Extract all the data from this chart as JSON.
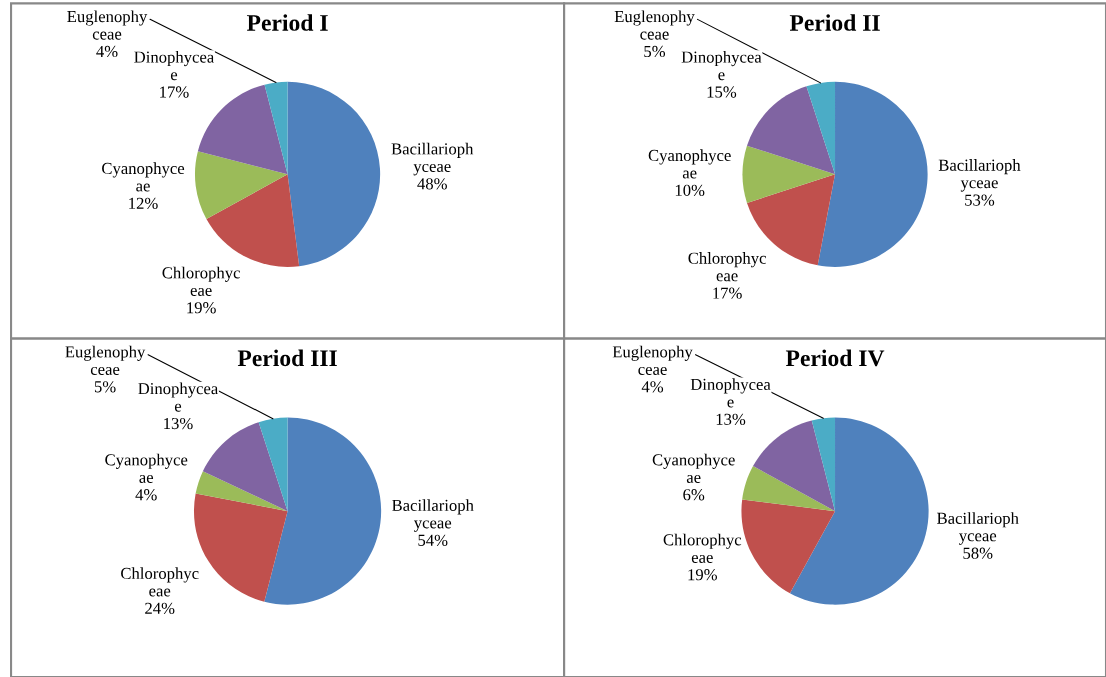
{
  "chart_data": [
    {
      "type": "pie",
      "title": "Period I",
      "categories": [
        "Bacillarioph\nyceae",
        "Chlorophyc\neae",
        "Cyanophyce\nae",
        "Dinophycea\ne",
        "Euglenophy\nceae"
      ],
      "values": [
        48,
        19,
        12,
        17,
        4
      ],
      "value_labels": [
        "48%",
        "19%",
        "12%",
        "17%",
        "4%"
      ],
      "colors": [
        "#4f81bd",
        "#c0504d",
        "#9bbb59",
        "#8064a2",
        "#4bacc6"
      ]
    },
    {
      "type": "pie",
      "title": "Period II",
      "categories": [
        "Bacillarioph\nyceae",
        "Chlorophyc\neae",
        "Cyanophyce\nae",
        "Dinophycea\ne",
        "Euglenophy\nceae"
      ],
      "values": [
        53,
        17,
        10,
        15,
        5
      ],
      "value_labels": [
        "53%",
        "17%",
        "10%",
        "15%",
        "5%"
      ],
      "colors": [
        "#4f81bd",
        "#c0504d",
        "#9bbb59",
        "#8064a2",
        "#4bacc6"
      ]
    },
    {
      "type": "pie",
      "title": "Period III",
      "categories": [
        "Bacillarioph\nyceae",
        "Chlorophyc\neae",
        "Cyanophyce\nae",
        "Dinophycea\ne",
        "Euglenophy\nceae"
      ],
      "values": [
        54,
        24,
        4,
        13,
        5
      ],
      "value_labels": [
        "54%",
        "24%",
        "4%",
        "13%",
        "5%"
      ],
      "colors": [
        "#4f81bd",
        "#c0504d",
        "#9bbb59",
        "#8064a2",
        "#4bacc6"
      ]
    },
    {
      "type": "pie",
      "title": "Period IV",
      "categories": [
        "Bacillarioph\nyceae",
        "Chlorophyc\neae",
        "Cyanophyce\nae",
        "Dinophycea\ne",
        "Euglenophy\nceae"
      ],
      "values": [
        58,
        19,
        6,
        13,
        4
      ],
      "value_labels": [
        "58%",
        "19%",
        "6%",
        "13%",
        "4%"
      ],
      "colors": [
        "#4f81bd",
        "#c0504d",
        "#9bbb59",
        "#8064a2",
        "#4bacc6"
      ]
    }
  ]
}
